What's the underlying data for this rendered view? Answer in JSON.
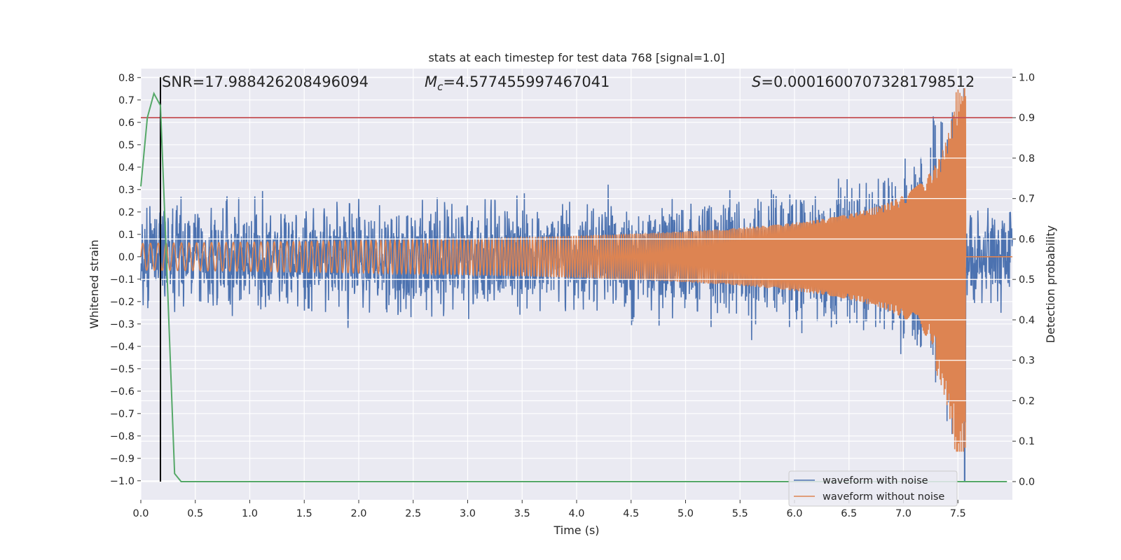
{
  "chart_data": {
    "type": "line",
    "title": "stats at each timestep for test data 768 [signal=1.0]",
    "xlabel": "Time (s)",
    "ylabel_left": "Whitened strain",
    "ylabel_right": "Detection probability",
    "xlim": [
      0.0,
      8.0
    ],
    "ylim_left": [
      -1.085,
      0.84
    ],
    "ylim_right": [
      -0.045,
      1.0214
    ],
    "x_ticks": [
      "0.0",
      "0.5",
      "1.0",
      "1.5",
      "2.0",
      "2.5",
      "3.0",
      "3.5",
      "4.0",
      "4.5",
      "5.0",
      "5.5",
      "6.0",
      "6.5",
      "7.0",
      "7.5"
    ],
    "y_left_ticks": [
      "0.8",
      "0.7",
      "0.6",
      "0.5",
      "0.4",
      "0.3",
      "0.2",
      "0.1",
      "0.0",
      "−0.1",
      "−0.2",
      "−0.3",
      "−0.4",
      "−0.5",
      "−0.6",
      "−0.7",
      "−0.8",
      "−0.9",
      "−1.0"
    ],
    "y_right_ticks": [
      "1.0",
      "0.9",
      "0.8",
      "0.7",
      "0.6",
      "0.5",
      "0.4",
      "0.3",
      "0.2",
      "0.1",
      "0.0"
    ],
    "grid": true,
    "legend_location": "lower-right",
    "annotations": {
      "snr_label": "SNR=17.988426208496094",
      "mc_symbol": "M",
      "mc_sub": "c",
      "mc_value": "=4.577455997467041",
      "s_symbol": "S",
      "s_value": "=0.00016007073281798512"
    },
    "threshold_probability": 0.9,
    "detection_time": 0.18,
    "merger_time": 7.57,
    "series": [
      {
        "name": "waveform with noise",
        "color": "#4c72b0",
        "noise_amplitude": 0.26,
        "envelope_start": 0.06,
        "envelope_peak": 0.75,
        "envelope_min": -1.0
      },
      {
        "name": "waveform without noise",
        "color": "#dd8452",
        "envelope_start": 0.06,
        "envelope_peak": 0.75,
        "envelope_min": -0.85
      },
      {
        "name": "detection probability",
        "color": "#55a868",
        "x": [
          0.0,
          0.06,
          0.12,
          0.18,
          0.24,
          0.31,
          0.37,
          0.45,
          7.95
        ],
        "y": [
          0.73,
          0.9,
          0.96,
          0.93,
          0.52,
          0.02,
          0.0,
          0.0,
          0.0
        ]
      }
    ],
    "colors": {
      "threshold_line": "#c44e52",
      "detection_marker": "#000000",
      "plot_background": "#eaeaf2",
      "grid": "#ffffff"
    }
  }
}
